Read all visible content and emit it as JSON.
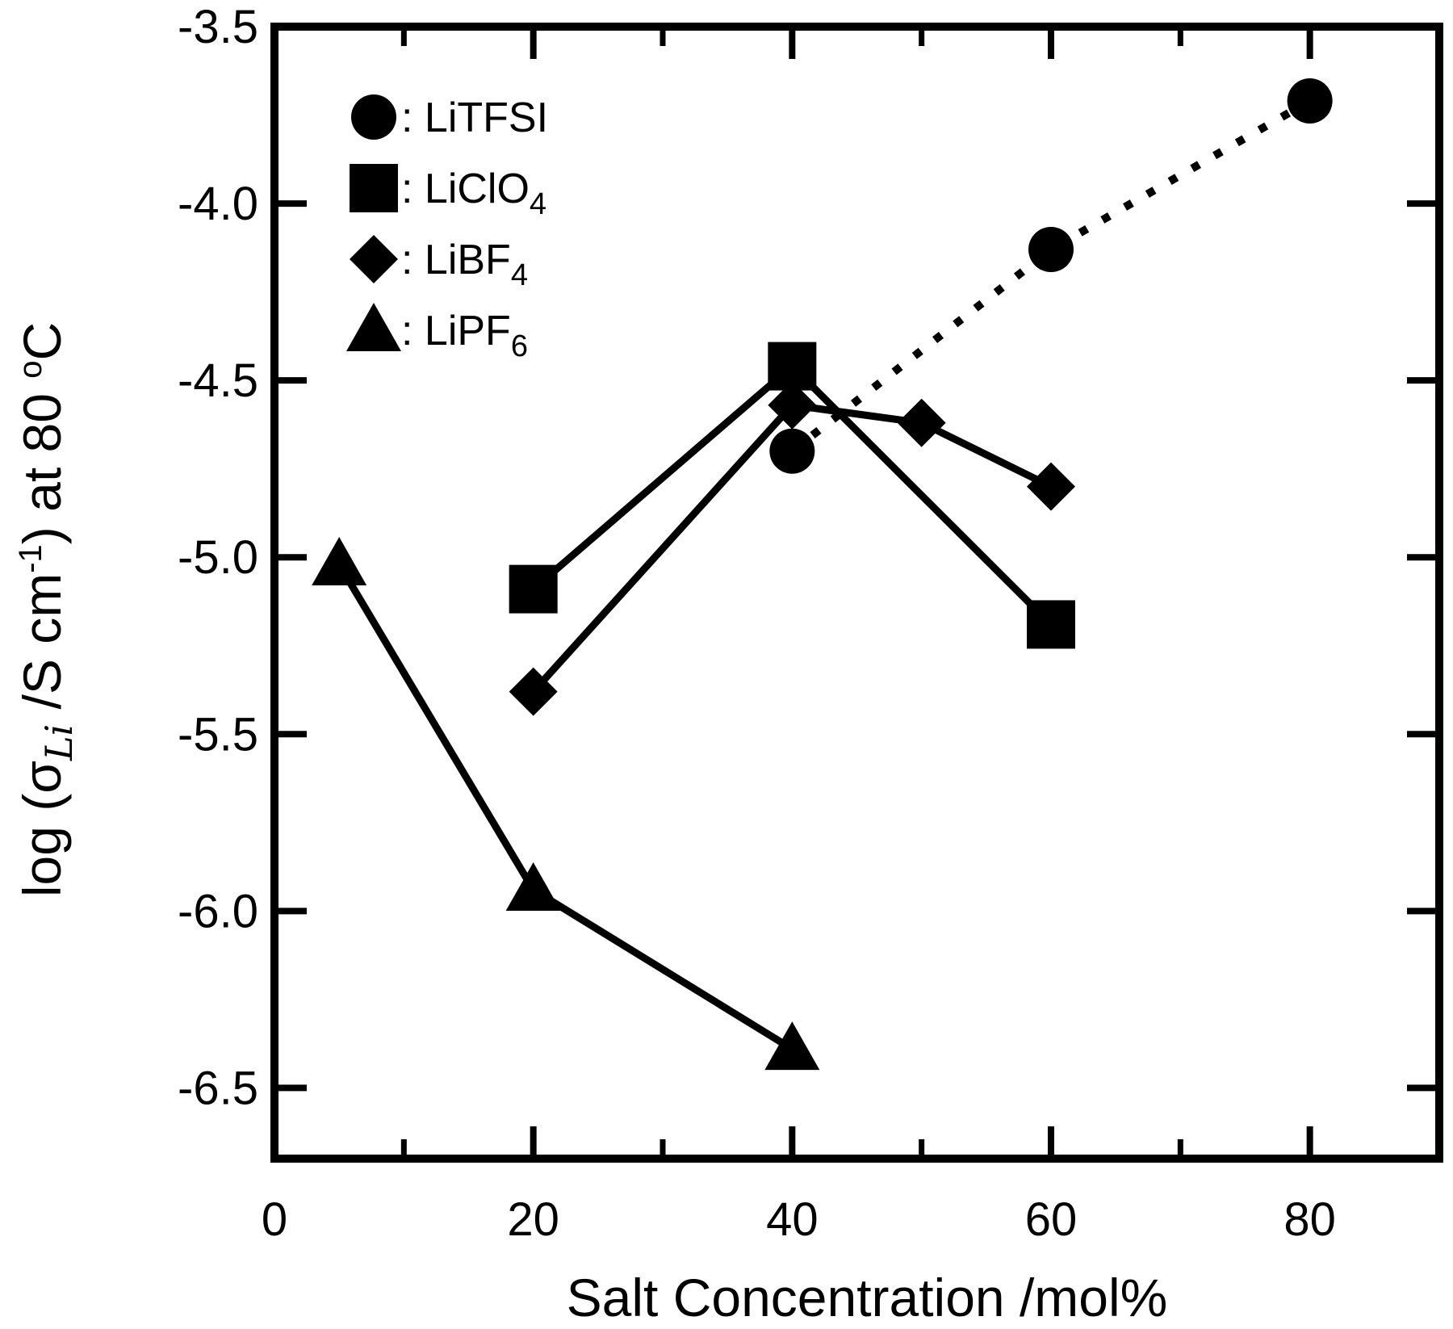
{
  "chart_data": {
    "type": "line",
    "title": "",
    "xlabel": "Salt Concentration /mol%",
    "ylabel": {
      "prefix": "log (σ",
      "sub": "Li",
      "mid": " /S cm",
      "sup": "-1",
      "suffix": ") at 80 ",
      "deg": "o",
      "unit": "C"
    },
    "xlim": [
      0,
      90
    ],
    "ylim": [
      -6.7,
      -3.5
    ],
    "x_ticks": [
      0,
      20,
      40,
      60,
      80
    ],
    "x_minor_ticks": [
      10,
      30,
      50,
      70
    ],
    "y_ticks": [
      -3.5,
      -4.0,
      -4.5,
      -5.0,
      -5.5,
      -6.0,
      -6.5
    ],
    "y_tick_labels": [
      "-3.5",
      "-4.0",
      "-4.5",
      "-5.0",
      "-5.5",
      "-6.0",
      "-6.5"
    ],
    "grid": false,
    "legend_position": "top-left",
    "series": [
      {
        "name": "LiTFSI",
        "legend": {
          "label": "LiTFSI",
          "sub": ""
        },
        "marker": "circle",
        "line": "dotted",
        "x": [
          40,
          60,
          80
        ],
        "y": [
          -4.7,
          -4.13,
          -3.71
        ]
      },
      {
        "name": "LiClO4",
        "legend": {
          "label": "LiClO",
          "sub": "4"
        },
        "marker": "square",
        "line": "solid",
        "x": [
          20,
          40,
          60
        ],
        "y": [
          -5.09,
          -4.46,
          -5.19
        ]
      },
      {
        "name": "LiBF4",
        "legend": {
          "label": "LiBF",
          "sub": "4"
        },
        "marker": "diamond",
        "line": "solid",
        "x": [
          20,
          40,
          50,
          60
        ],
        "y": [
          -5.38,
          -4.57,
          -4.62,
          -4.8
        ]
      },
      {
        "name": "LiPF6",
        "legend": {
          "label": "LiPF",
          "sub": "6"
        },
        "marker": "triangle",
        "line": "solid",
        "x": [
          5,
          20,
          40
        ],
        "y": [
          -5.02,
          -5.94,
          -6.39
        ]
      }
    ],
    "colors": {
      "ink": "#000000",
      "background": "#ffffff"
    }
  }
}
